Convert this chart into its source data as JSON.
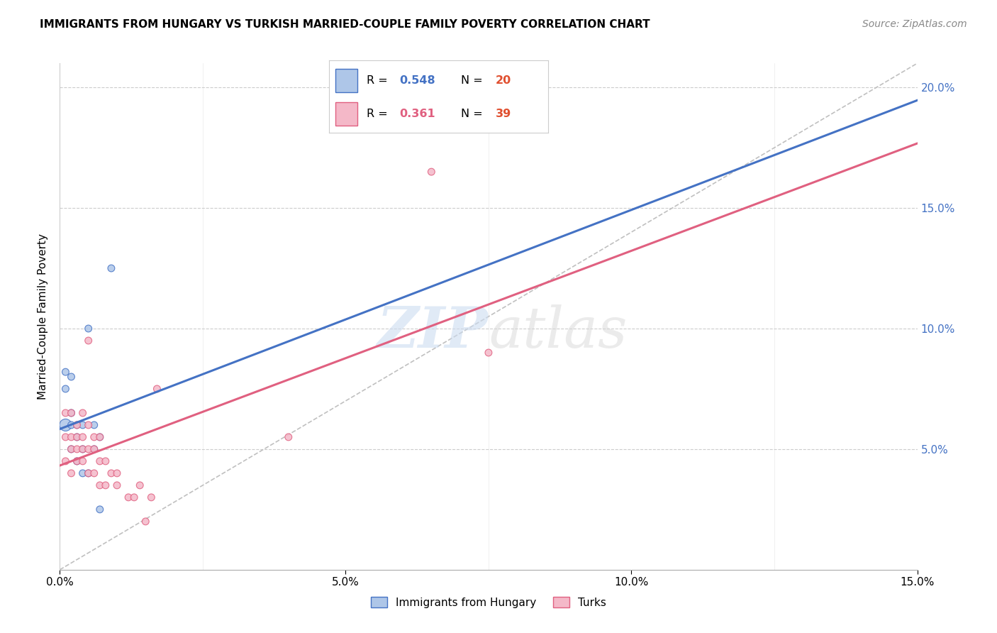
{
  "title": "IMMIGRANTS FROM HUNGARY VS TURKISH MARRIED-COUPLE FAMILY POVERTY CORRELATION CHART",
  "source": "Source: ZipAtlas.com",
  "ylabel_label": "Married-Couple Family Poverty",
  "R_hungary": 0.548,
  "N_hungary": 20,
  "R_turks": 0.361,
  "N_turks": 39,
  "xmin": 0.0,
  "xmax": 0.15,
  "ymin": 0.0,
  "ymax": 0.21,
  "color_hungary": "#aec6e8",
  "color_hungary_line": "#4472c4",
  "color_turks": "#f4b8c8",
  "color_turks_line": "#e06080",
  "color_diag": "#c0c0c0",
  "watermark_zip": "ZIP",
  "watermark_atlas": "atlas",
  "hungary_x": [
    0.001,
    0.001,
    0.001,
    0.002,
    0.002,
    0.002,
    0.002,
    0.003,
    0.003,
    0.003,
    0.004,
    0.004,
    0.004,
    0.005,
    0.005,
    0.006,
    0.006,
    0.007,
    0.007,
    0.009
  ],
  "hungary_y": [
    0.06,
    0.075,
    0.082,
    0.05,
    0.06,
    0.065,
    0.08,
    0.045,
    0.055,
    0.06,
    0.04,
    0.05,
    0.06,
    0.04,
    0.1,
    0.05,
    0.06,
    0.025,
    0.055,
    0.125
  ],
  "hungary_sizes": [
    150,
    50,
    50,
    50,
    50,
    50,
    50,
    50,
    50,
    50,
    50,
    50,
    50,
    50,
    50,
    50,
    50,
    50,
    50,
    50
  ],
  "turks_x": [
    0.001,
    0.001,
    0.001,
    0.002,
    0.002,
    0.002,
    0.002,
    0.003,
    0.003,
    0.003,
    0.003,
    0.004,
    0.004,
    0.004,
    0.004,
    0.005,
    0.005,
    0.005,
    0.005,
    0.006,
    0.006,
    0.006,
    0.007,
    0.007,
    0.007,
    0.008,
    0.008,
    0.009,
    0.01,
    0.01,
    0.012,
    0.013,
    0.014,
    0.015,
    0.016,
    0.017,
    0.04,
    0.065,
    0.075
  ],
  "turks_y": [
    0.045,
    0.055,
    0.065,
    0.04,
    0.05,
    0.055,
    0.065,
    0.045,
    0.05,
    0.055,
    0.06,
    0.045,
    0.05,
    0.055,
    0.065,
    0.04,
    0.05,
    0.06,
    0.095,
    0.04,
    0.05,
    0.055,
    0.035,
    0.045,
    0.055,
    0.035,
    0.045,
    0.04,
    0.035,
    0.04,
    0.03,
    0.03,
    0.035,
    0.02,
    0.03,
    0.075,
    0.055,
    0.165,
    0.09
  ],
  "turks_sizes": [
    50,
    50,
    50,
    50,
    50,
    50,
    50,
    50,
    50,
    50,
    50,
    50,
    50,
    50,
    50,
    50,
    50,
    50,
    50,
    50,
    50,
    50,
    50,
    50,
    50,
    50,
    50,
    50,
    50,
    50,
    50,
    50,
    50,
    50,
    50,
    50,
    50,
    50,
    50
  ],
  "grid_color": "#cccccc",
  "background_color": "#ffffff",
  "yticks": [
    0.0,
    0.05,
    0.1,
    0.15,
    0.2
  ],
  "ytick_labels_right": [
    "",
    "5.0%",
    "10.0%",
    "15.0%",
    "20.0%"
  ],
  "xticks": [
    0.0,
    0.05,
    0.1,
    0.15
  ],
  "xtick_labels": [
    "0.0%",
    "5.0%",
    "10.0%",
    "15.0%"
  ]
}
